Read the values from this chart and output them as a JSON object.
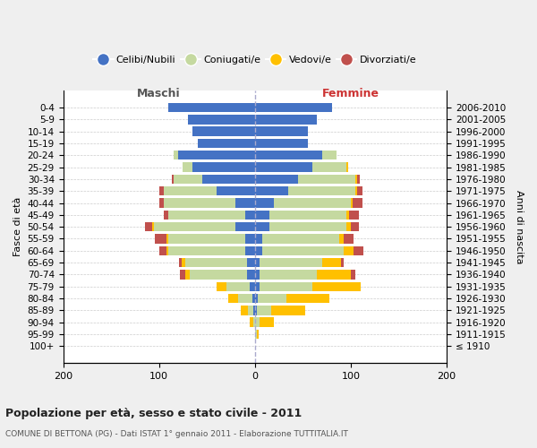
{
  "age_groups": [
    "100+",
    "95-99",
    "90-94",
    "85-89",
    "80-84",
    "75-79",
    "70-74",
    "65-69",
    "60-64",
    "55-59",
    "50-54",
    "45-49",
    "40-44",
    "35-39",
    "30-34",
    "25-29",
    "20-24",
    "15-19",
    "10-14",
    "5-9",
    "0-4"
  ],
  "birth_years": [
    "≤ 1910",
    "1911-1915",
    "1916-1920",
    "1921-1925",
    "1926-1930",
    "1931-1935",
    "1936-1940",
    "1941-1945",
    "1946-1950",
    "1951-1955",
    "1956-1960",
    "1961-1965",
    "1966-1970",
    "1971-1975",
    "1976-1980",
    "1981-1985",
    "1986-1990",
    "1991-1995",
    "1996-2000",
    "2001-2005",
    "2006-2010"
  ],
  "m_celibe": [
    0,
    0,
    0,
    2,
    3,
    5,
    8,
    8,
    10,
    10,
    20,
    10,
    20,
    40,
    55,
    65,
    80,
    60,
    65,
    70,
    90
  ],
  "m_coniugato": [
    0,
    0,
    2,
    5,
    15,
    25,
    60,
    65,
    80,
    80,
    85,
    80,
    75,
    55,
    30,
    10,
    5,
    0,
    0,
    0,
    0
  ],
  "m_vedovo": [
    0,
    0,
    3,
    8,
    10,
    10,
    5,
    3,
    2,
    2,
    2,
    0,
    0,
    0,
    0,
    0,
    0,
    0,
    0,
    0,
    0
  ],
  "m_divorziato": [
    0,
    0,
    0,
    0,
    0,
    0,
    5,
    3,
    8,
    12,
    8,
    5,
    5,
    5,
    2,
    0,
    0,
    0,
    0,
    0,
    0
  ],
  "f_nubile": [
    0,
    0,
    0,
    2,
    3,
    5,
    5,
    5,
    8,
    8,
    15,
    15,
    20,
    35,
    45,
    60,
    70,
    55,
    55,
    65,
    80
  ],
  "f_coniugata": [
    0,
    2,
    5,
    15,
    30,
    55,
    60,
    65,
    85,
    80,
    80,
    80,
    80,
    70,
    60,
    35,
    15,
    0,
    0,
    0,
    0
  ],
  "f_vedova": [
    0,
    2,
    15,
    35,
    45,
    50,
    35,
    20,
    10,
    5,
    5,
    3,
    2,
    2,
    2,
    2,
    0,
    0,
    0,
    0,
    0
  ],
  "f_divorziata": [
    0,
    0,
    0,
    0,
    0,
    0,
    5,
    3,
    10,
    10,
    8,
    10,
    10,
    5,
    2,
    0,
    0,
    0,
    0,
    0,
    0
  ],
  "color_celibe": "#4472c4",
  "color_coniugato": "#c5d9a0",
  "color_vedovo": "#ffc000",
  "color_divorziato": "#c0504d",
  "bg_color": "#efefef",
  "plot_bg": "#ffffff",
  "grid_color": "#cccccc",
  "xlim": [
    -200,
    200
  ],
  "xticks": [
    -200,
    -100,
    0,
    100,
    200
  ],
  "xticklabels": [
    "200",
    "100",
    "0",
    "100",
    "200"
  ],
  "title": "Popolazione per età, sesso e stato civile - 2011",
  "subtitle": "COMUNE DI BETTONA (PG) - Dati ISTAT 1° gennaio 2011 - Elaborazione TUTTITALIA.IT",
  "ylabel_left": "Fasce di età",
  "ylabel_right": "Anni di nascita",
  "legend_labels": [
    "Celibi/Nubili",
    "Coniugati/e",
    "Vedovi/e",
    "Divorziati/e"
  ],
  "maschi_label": "Maschi",
  "femmine_label": "Femmine"
}
